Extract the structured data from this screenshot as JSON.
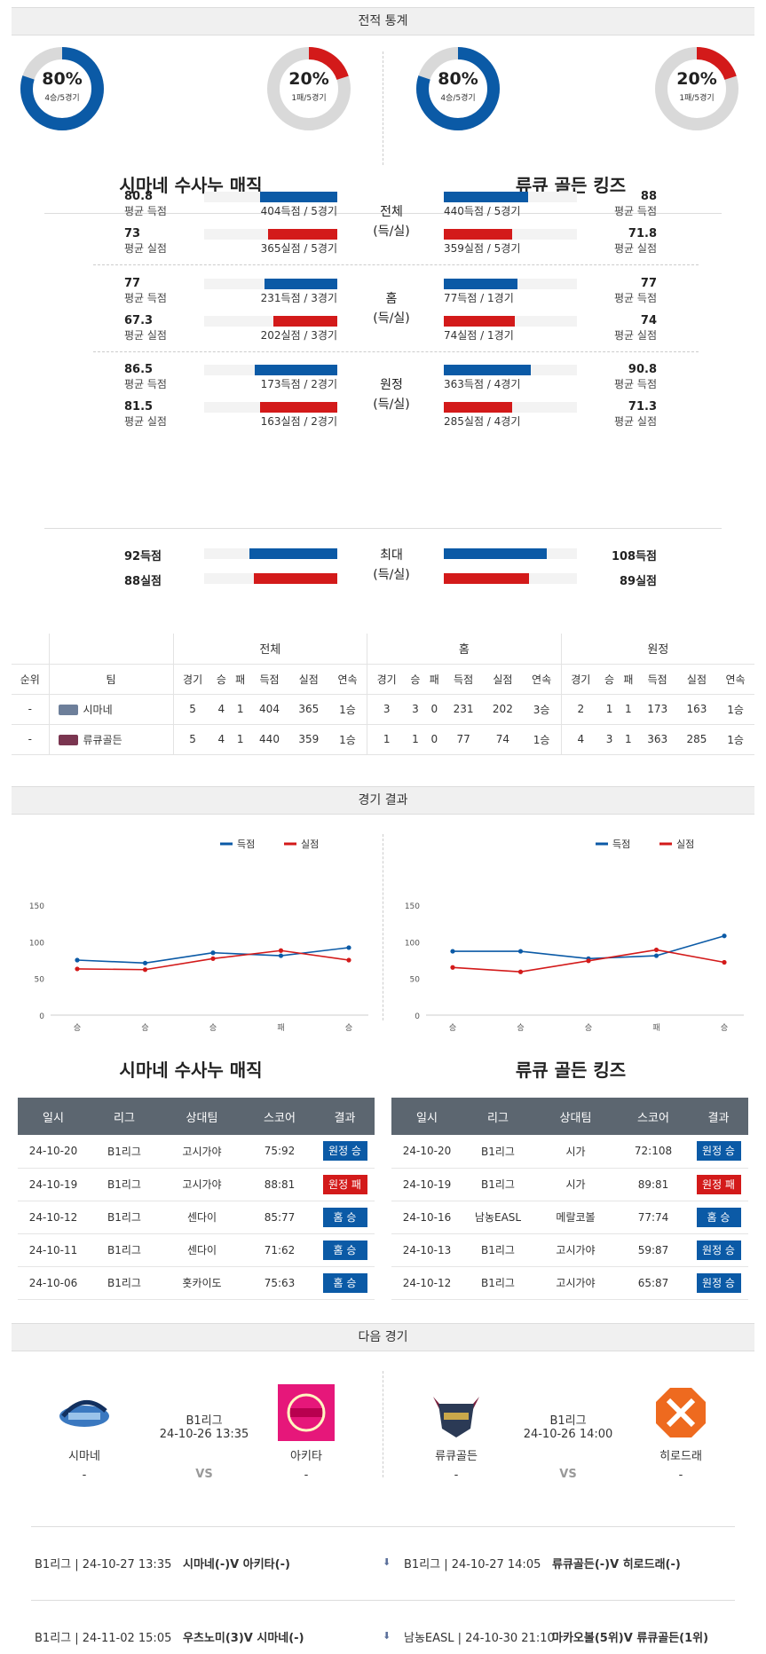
{
  "headers": {
    "record": "전적 통계",
    "results": "경기 결과",
    "next": "다음 경기"
  },
  "colors": {
    "blue": "#0b5aa6",
    "red": "#d31a1a",
    "grey_ring": "#d9d9d9"
  },
  "teams": {
    "home": {
      "name": "시마네 수사누 매직",
      "short": "시마네",
      "donut_win": {
        "pct": "80%",
        "sub": "4승/5경기",
        "value": 0.8
      },
      "donut_loss": {
        "pct": "20%",
        "sub": "1패/5경기",
        "value": 0.2
      }
    },
    "away": {
      "name": "류큐 골든 킹즈",
      "short": "류큐골든",
      "donut_win": {
        "pct": "80%",
        "sub": "4승/5경기",
        "value": 0.8
      },
      "donut_loss": {
        "pct": "20%",
        "sub": "1패/5경기",
        "value": 0.2
      }
    }
  },
  "stat_groups": [
    {
      "cat1": "전체",
      "cat2": "(득/실)",
      "left": [
        {
          "val": "80.8",
          "label": "평균 득점",
          "note": "404득점 / 5경기",
          "frac": 0.58,
          "color": "blue"
        },
        {
          "val": "73",
          "label": "평균 실점",
          "note": "365실점 / 5경기",
          "frac": 0.52,
          "color": "red"
        }
      ],
      "right": [
        {
          "val": "88",
          "label": "평균 득점",
          "note": "440득점 / 5경기",
          "frac": 0.63,
          "color": "blue"
        },
        {
          "val": "71.8",
          "label": "평균 실점",
          "note": "359실점 / 5경기",
          "frac": 0.51,
          "color": "red"
        }
      ]
    },
    {
      "cat1": "홈",
      "cat2": "(득/실)",
      "left": [
        {
          "val": "77",
          "label": "평균 득점",
          "note": "231득점 / 3경기",
          "frac": 0.55,
          "color": "blue"
        },
        {
          "val": "67.3",
          "label": "평균 실점",
          "note": "202실점 / 3경기",
          "frac": 0.48,
          "color": "red"
        }
      ],
      "right": [
        {
          "val": "77",
          "label": "평균 득점",
          "note": "77득점 / 1경기",
          "frac": 0.55,
          "color": "blue"
        },
        {
          "val": "74",
          "label": "평균 실점",
          "note": "74실점 / 1경기",
          "frac": 0.53,
          "color": "red"
        }
      ]
    },
    {
      "cat1": "원정",
      "cat2": "(득/실)",
      "left": [
        {
          "val": "86.5",
          "label": "평균 득점",
          "note": "173득점 / 2경기",
          "frac": 0.62,
          "color": "blue"
        },
        {
          "val": "81.5",
          "label": "평균 실점",
          "note": "163실점 / 2경기",
          "frac": 0.58,
          "color": "red"
        }
      ],
      "right": [
        {
          "val": "90.8",
          "label": "평균 득점",
          "note": "363득점 / 4경기",
          "frac": 0.65,
          "color": "blue"
        },
        {
          "val": "71.3",
          "label": "평균 실점",
          "note": "285실점 / 4경기",
          "frac": 0.51,
          "color": "red"
        }
      ]
    }
  ],
  "max_group": {
    "cat1": "최대",
    "cat2": "(득/실)",
    "left": [
      {
        "val": "92득점",
        "frac": 0.66,
        "color": "blue"
      },
      {
        "val": "88실점",
        "frac": 0.63,
        "color": "red"
      }
    ],
    "right": [
      {
        "val": "108득점",
        "frac": 0.77,
        "color": "blue"
      },
      {
        "val": "89실점",
        "frac": 0.64,
        "color": "red"
      }
    ]
  },
  "standings": {
    "groups": [
      "전체",
      "홈",
      "원정"
    ],
    "cols": [
      "순위",
      "팀",
      "경기",
      "승",
      "패",
      "득점",
      "실점",
      "연속",
      "경기",
      "승",
      "패",
      "득점",
      "실점",
      "연속",
      "경기",
      "승",
      "패",
      "득점",
      "실점",
      "연속"
    ],
    "rows": [
      [
        "-",
        "시마네",
        "5",
        "4",
        "1",
        "404",
        "365",
        "1승",
        "3",
        "3",
        "0",
        "231",
        "202",
        "3승",
        "2",
        "1",
        "1",
        "173",
        "163",
        "1승"
      ],
      [
        "-",
        "류큐골든",
        "5",
        "4",
        "1",
        "440",
        "359",
        "1승",
        "1",
        "1",
        "0",
        "77",
        "74",
        "1승",
        "4",
        "3",
        "1",
        "363",
        "285",
        "1승"
      ]
    ]
  },
  "chart_data": [
    {
      "type": "line",
      "title": "",
      "legend": [
        "득점",
        "실점"
      ],
      "legend_position": "top-right",
      "categories": [
        "승",
        "승",
        "승",
        "패",
        "승"
      ],
      "series": [
        {
          "name": "득점",
          "values": [
            75,
            71,
            85,
            81,
            92
          ],
          "color": "#0b5aa6"
        },
        {
          "name": "실점",
          "values": [
            63,
            62,
            77,
            88,
            75
          ],
          "color": "#d31a1a"
        }
      ],
      "yticks": [
        "0",
        "50",
        "100",
        "150"
      ],
      "ylim": [
        0,
        150
      ],
      "grid": false
    },
    {
      "type": "line",
      "title": "",
      "legend": [
        "득점",
        "실점"
      ],
      "legend_position": "top-right",
      "categories": [
        "승",
        "승",
        "승",
        "패",
        "승"
      ],
      "series": [
        {
          "name": "득점",
          "values": [
            87,
            87,
            77,
            81,
            108
          ],
          "color": "#0b5aa6"
        },
        {
          "name": "실점",
          "values": [
            65,
            59,
            74,
            89,
            72
          ],
          "color": "#d31a1a"
        }
      ],
      "yticks": [
        "0",
        "50",
        "100",
        "150"
      ],
      "ylim": [
        0,
        150
      ],
      "grid": false
    }
  ],
  "results": {
    "headers": [
      "일시",
      "리그",
      "상대팀",
      "스코어",
      "결과"
    ],
    "home": [
      [
        "24-10-20",
        "B1리그",
        "고시가야",
        "75:92",
        "원정 승",
        "win"
      ],
      [
        "24-10-19",
        "B1리그",
        "고시가야",
        "88:81",
        "원정 패",
        "loss"
      ],
      [
        "24-10-12",
        "B1리그",
        "센다이",
        "85:77",
        "홈 승",
        "win"
      ],
      [
        "24-10-11",
        "B1리그",
        "센다이",
        "71:62",
        "홈 승",
        "win"
      ],
      [
        "24-10-06",
        "B1리그",
        "홋카이도",
        "75:63",
        "홈 승",
        "win"
      ]
    ],
    "away": [
      [
        "24-10-20",
        "B1리그",
        "시가",
        "72:108",
        "원정 승",
        "win"
      ],
      [
        "24-10-19",
        "B1리그",
        "시가",
        "89:81",
        "원정 패",
        "loss"
      ],
      [
        "24-10-16",
        "남농EASL",
        "메랄코볼",
        "77:74",
        "홈 승",
        "win"
      ],
      [
        "24-10-13",
        "B1리그",
        "고시가야",
        "59:87",
        "원정 승",
        "win"
      ],
      [
        "24-10-12",
        "B1리그",
        "고시가야",
        "65:87",
        "원정 승",
        "win"
      ]
    ]
  },
  "next_games": {
    "left": {
      "league": "B1리그",
      "datetime": "24-10-26 13:35",
      "team1": "시마네",
      "team2": "아키타",
      "rank1": "-",
      "rank2": "-",
      "vs": "VS"
    },
    "right": {
      "league": "B1리그",
      "datetime": "24-10-26 14:00",
      "team1": "류큐골든",
      "team2": "히로드래",
      "rank1": "-",
      "rank2": "-",
      "vs": "VS"
    }
  },
  "fixtures": {
    "left": [
      {
        "info": "B1리그 | 24-10-27 13:35",
        "match": "시마네(-)V  아키타(-)"
      },
      {
        "info": "B1리그 | 24-11-02 15:05",
        "match": "우츠노미(3)V  시마네(-)"
      }
    ],
    "right": [
      {
        "info": "B1리그 | 24-10-27 14:05",
        "match": "류큐골든(-)V  히로드래(-)"
      },
      {
        "info": "남농EASL | 24-10-30 21:10",
        "match": "마카오볼(5위)V  류큐골든(1위)"
      }
    ]
  }
}
